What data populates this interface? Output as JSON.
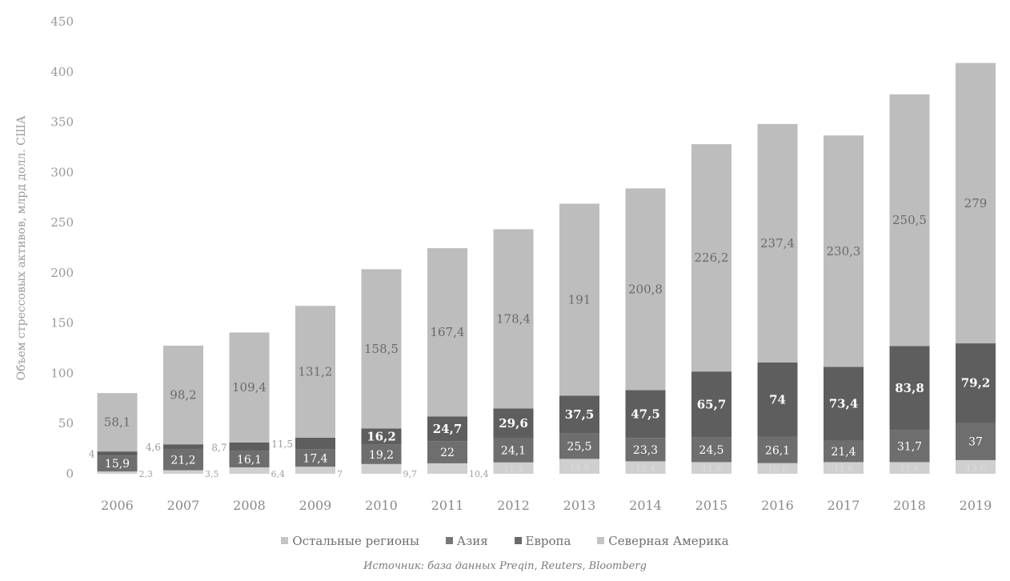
{
  "chart_data": {
    "type": "bar",
    "stacked": true,
    "ylabel": "Объем стрессовых активов, млрд долл. США",
    "ylim": [
      0,
      450
    ],
    "yticks": [
      0,
      50,
      100,
      150,
      200,
      250,
      300,
      350,
      400,
      450
    ],
    "grid": false,
    "categories": [
      "2006",
      "2007",
      "2008",
      "2009",
      "2010",
      "2011",
      "2012",
      "2013",
      "2014",
      "2015",
      "2016",
      "2017",
      "2018",
      "2019"
    ],
    "series": [
      {
        "name": "Северная Америка",
        "color": "#cfcfcf",
        "values": [
          2.3,
          3.5,
          6.4,
          7,
          9.7,
          10.4,
          11.3,
          14.8,
          12.4,
          11.6,
          10.6,
          11.6,
          11.6,
          13.6
        ],
        "labels": [
          "2,3",
          "3,5",
          "6,4",
          "7",
          "9,7",
          "10,4",
          "11,3",
          "14,8",
          "12,4",
          "11,6",
          "10,6",
          "11,6",
          "11,6",
          "13,6"
        ]
      },
      {
        "name": "Европа",
        "color": "#6e6e6e",
        "values": [
          15.9,
          21.2,
          16.1,
          17.4,
          19.2,
          22,
          24.1,
          25.5,
          23.3,
          24.5,
          26.1,
          21.4,
          31.7,
          37
        ],
        "labels": [
          "15,9",
          "21,2",
          "16,1",
          "17,4",
          "19,2",
          "22",
          "24,1",
          "25,5",
          "23,3",
          "24,5",
          "26,1",
          "21,4",
          "31,7",
          "37"
        ]
      },
      {
        "name": "Азия",
        "color": "#5e5e5e",
        "values": [
          4,
          4.6,
          8.7,
          11.5,
          16.2,
          24.7,
          29.6,
          37.5,
          47.5,
          65.7,
          74,
          73.4,
          83.8,
          79.2
        ],
        "labels": [
          "4",
          "4,6",
          "8,7",
          "11,5",
          "16,2",
          "24,7",
          "29,6",
          "37,5",
          "47,5",
          "65,7",
          "74",
          "73,4",
          "83,8",
          "79,2"
        ]
      },
      {
        "name": "Остальные регионы",
        "color": "#bdbdbd",
        "values": [
          58.1,
          98.2,
          109.4,
          131.2,
          158.5,
          167.4,
          178.4,
          191,
          200.8,
          226.2,
          237.4,
          230.3,
          250.5,
          279
        ],
        "labels": [
          "58,1",
          "98,2",
          "109,4",
          "131,2",
          "158,5",
          "167,4",
          "178,4",
          "191",
          "200,8",
          "226,2",
          "237,4",
          "230,3",
          "250,5",
          "279"
        ]
      }
    ],
    "legend": {
      "placement": "bottom",
      "items": [
        {
          "label": "Остальные регионы",
          "color": "#c4c4c4"
        },
        {
          "label": "Азия",
          "color": "#777777"
        },
        {
          "label": "Европа",
          "color": "#6a6a6a"
        },
        {
          "label": "Северная Америка",
          "color": "#c4c4c4"
        }
      ]
    },
    "source": "Источник: база данных Preqin, Reuters, Bloomberg"
  }
}
